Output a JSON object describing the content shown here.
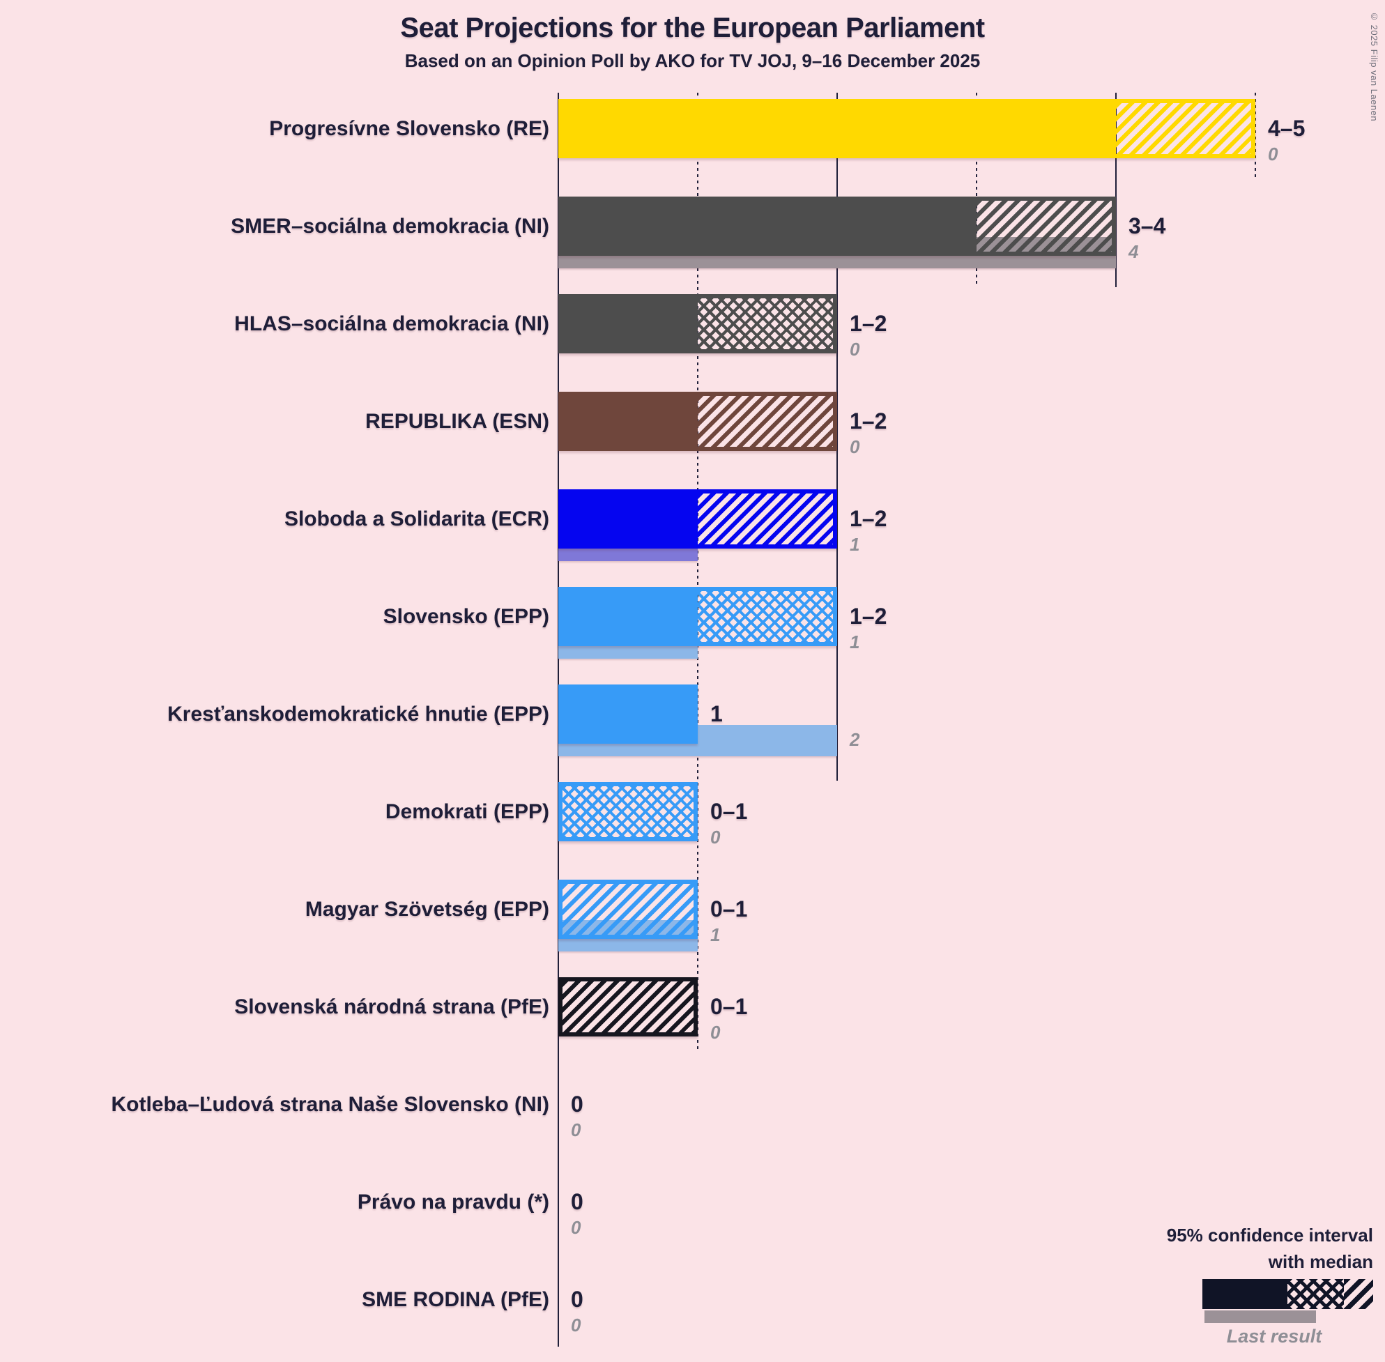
{
  "title": "Seat Projections for the European Parliament",
  "subtitle": "Based on an Opinion Poll by AKO for TV JOJ, 9–16 December 2025",
  "copyright": "© 2025 Filip van Laenen",
  "legend": {
    "line1": "95% confidence interval",
    "line2": "with median",
    "last_result": "Last result"
  },
  "colors": {
    "background": "#fbe3e7",
    "text": "#1e1e38",
    "muted_label": "#8e8e95",
    "axis": "#20203a",
    "legend_bar": "#101426",
    "last_result_gray": "#9b9197"
  },
  "chart_data": {
    "type": "bar",
    "orientation": "horizontal",
    "title": "Seat Projections for the European Parliament",
    "subtitle": "Based on an Opinion Poll by AKO for TV JOJ, 9–16 December 2025",
    "unit": "seats",
    "x_axis": {
      "min": 0,
      "max": 5,
      "solid_gridlines": [
        0,
        2,
        4
      ],
      "dotted_gridlines": [
        1,
        3,
        5
      ]
    },
    "legend_note": "95% confidence interval with median; thin gray bar = last result",
    "parties": [
      {
        "name": "Progresívne Slovensko (RE)",
        "ci_low": 4,
        "median": 4,
        "ci_high": 5,
        "last_result": 0,
        "ci_label": "4–5",
        "last_label": "0",
        "color": "#ffd900",
        "last_color": null
      },
      {
        "name": "SMER–sociálna demokracia (NI)",
        "ci_low": 3,
        "median": 3,
        "ci_high": 4,
        "last_result": 4,
        "ci_label": "3–4",
        "last_label": "4",
        "color": "#4d4d4d",
        "last_color": "#9b9197"
      },
      {
        "name": "HLAS–sociálna demokracia (NI)",
        "ci_low": 1,
        "median": 2,
        "ci_high": 2,
        "last_result": 0,
        "ci_label": "1–2",
        "last_label": "0",
        "color": "#4d4d4d",
        "last_color": null
      },
      {
        "name": "REPUBLIKA (ESN)",
        "ci_low": 1,
        "median": 1,
        "ci_high": 2,
        "last_result": 0,
        "ci_label": "1–2",
        "last_label": "0",
        "color": "#6f463c",
        "last_color": null
      },
      {
        "name": "Sloboda a Solidarita (ECR)",
        "ci_low": 1,
        "median": 1,
        "ci_high": 2,
        "last_result": 1,
        "ci_label": "1–2",
        "last_label": "1",
        "color": "#0505f0",
        "last_color": "#7f78d8"
      },
      {
        "name": "Slovensko (EPP)",
        "ci_low": 1,
        "median": 2,
        "ci_high": 2,
        "last_result": 1,
        "ci_label": "1–2",
        "last_label": "1",
        "color": "#379bf7",
        "last_color": "#8cb7e8"
      },
      {
        "name": "Kresťanskodemokratické hnutie (EPP)",
        "ci_low": 1,
        "median": 1,
        "ci_high": 1,
        "last_result": 2,
        "ci_label": "1",
        "last_label": "2",
        "color": "#379bf7",
        "last_color": "#8cb7e8"
      },
      {
        "name": "Demokrati (EPP)",
        "ci_low": 0,
        "median": 1,
        "ci_high": 1,
        "last_result": 0,
        "ci_label": "0–1",
        "last_label": "0",
        "color": "#379bf7",
        "last_color": null
      },
      {
        "name": "Magyar Szövetség (EPP)",
        "ci_low": 0,
        "median": 0,
        "ci_high": 1,
        "last_result": 1,
        "ci_label": "0–1",
        "last_label": "1",
        "color": "#379bf7",
        "last_color": "#8cb7e8"
      },
      {
        "name": "Slovenská národná strana (PfE)",
        "ci_low": 0,
        "median": 0,
        "ci_high": 1,
        "last_result": 0,
        "ci_label": "0–1",
        "last_label": "0",
        "color": "#16161f",
        "last_color": null
      },
      {
        "name": "Kotleba–Ľudová strana Naše Slovensko (NI)",
        "ci_low": 0,
        "median": 0,
        "ci_high": 0,
        "last_result": 0,
        "ci_label": "0",
        "last_label": "0",
        "color": null,
        "last_color": null
      },
      {
        "name": "Právo na pravdu (*)",
        "ci_low": 0,
        "median": 0,
        "ci_high": 0,
        "last_result": 0,
        "ci_label": "0",
        "last_label": "0",
        "color": null,
        "last_color": null
      },
      {
        "name": "SME RODINA (PfE)",
        "ci_low": 0,
        "median": 0,
        "ci_high": 0,
        "last_result": 0,
        "ci_label": "0",
        "last_label": "0",
        "color": null,
        "last_color": null
      }
    ]
  }
}
